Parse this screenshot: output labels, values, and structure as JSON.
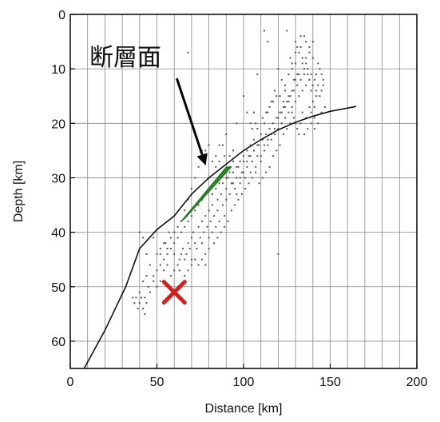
{
  "chart_data": {
    "type": "scatter",
    "xlabel": "Distance [km]",
    "ylabel": "Depth [km]",
    "xlim": [
      0,
      200
    ],
    "ylim": [
      0,
      65
    ],
    "y_inverted": true,
    "x_ticks": [
      0,
      50,
      100,
      150,
      200
    ],
    "y_ticks": [
      0,
      10,
      20,
      30,
      40,
      50,
      60
    ],
    "grid": true,
    "grid_x_step": 10,
    "grid_y_step": 10,
    "annotation": {
      "text": "断層面",
      "arrow_from": [
        67,
        10
      ],
      "arrow_to": [
        80,
        28
      ]
    },
    "plate_boundary": [
      [
        8,
        65
      ],
      [
        20,
        58
      ],
      [
        32,
        50
      ],
      [
        40,
        43
      ],
      [
        50,
        39.5
      ],
      [
        60,
        37
      ],
      [
        70,
        33
      ],
      [
        80,
        30
      ],
      [
        90,
        27.5
      ],
      [
        100,
        25
      ],
      [
        110,
        23
      ],
      [
        120,
        21.2
      ],
      [
        130,
        19.8
      ],
      [
        140,
        18.7
      ],
      [
        150,
        17.8
      ],
      [
        165,
        16.9
      ]
    ],
    "fault_plane": [
      [
        64,
        38
      ],
      [
        90,
        28
      ],
      [
        93,
        28
      ],
      [
        66,
        37.5
      ]
    ],
    "hypocenter": {
      "x": 60,
      "y": 51,
      "marker": "x",
      "color": "#cc2222"
    },
    "fault_color": "#2a8a2a",
    "seismicity": [
      [
        36,
        52
      ],
      [
        37,
        53
      ],
      [
        38,
        52
      ],
      [
        39,
        54
      ],
      [
        40,
        51
      ],
      [
        40,
        53
      ],
      [
        41,
        52
      ],
      [
        42,
        54
      ],
      [
        43,
        55
      ],
      [
        43,
        52
      ],
      [
        44,
        53
      ],
      [
        45,
        50
      ],
      [
        42,
        49
      ],
      [
        44,
        48
      ],
      [
        46,
        51
      ],
      [
        48,
        49
      ],
      [
        50,
        50
      ],
      [
        52,
        49
      ],
      [
        54,
        47
      ],
      [
        56,
        46
      ],
      [
        58,
        48
      ],
      [
        60,
        47
      ],
      [
        62,
        46
      ],
      [
        63,
        45
      ],
      [
        64,
        44
      ],
      [
        65,
        43
      ],
      [
        66,
        45
      ],
      [
        67,
        44
      ],
      [
        68,
        42
      ],
      [
        69,
        43
      ],
      [
        70,
        41
      ],
      [
        70,
        45
      ],
      [
        71,
        40
      ],
      [
        72,
        42
      ],
      [
        73,
        43
      ],
      [
        74,
        39
      ],
      [
        75,
        41
      ],
      [
        76,
        38
      ],
      [
        76,
        42
      ],
      [
        77,
        40
      ],
      [
        78,
        37
      ],
      [
        78,
        44
      ],
      [
        79,
        39
      ],
      [
        80,
        36
      ],
      [
        80,
        41
      ],
      [
        81,
        38
      ],
      [
        82,
        40
      ],
      [
        82,
        35
      ],
      [
        83,
        37
      ],
      [
        84,
        39
      ],
      [
        85,
        34
      ],
      [
        85,
        36
      ],
      [
        86,
        38
      ],
      [
        87,
        33
      ],
      [
        88,
        35
      ],
      [
        88,
        31
      ],
      [
        89,
        37
      ],
      [
        90,
        32
      ],
      [
        90,
        34
      ],
      [
        91,
        30
      ],
      [
        92,
        33
      ],
      [
        93,
        31
      ],
      [
        94,
        29
      ],
      [
        95,
        32
      ],
      [
        96,
        30
      ],
      [
        97,
        28
      ],
      [
        98,
        31
      ],
      [
        99,
        29
      ],
      [
        100,
        27
      ],
      [
        101,
        30
      ],
      [
        102,
        28
      ],
      [
        103,
        26
      ],
      [
        104,
        29
      ],
      [
        105,
        27
      ],
      [
        106,
        25
      ],
      [
        107,
        28
      ],
      [
        108,
        26
      ],
      [
        109,
        24
      ],
      [
        110,
        27
      ],
      [
        111,
        23
      ],
      [
        112,
        25
      ],
      [
        113,
        22
      ],
      [
        114,
        24
      ],
      [
        115,
        21
      ],
      [
        116,
        23
      ],
      [
        117,
        20
      ],
      [
        118,
        22
      ],
      [
        119,
        19
      ],
      [
        120,
        21
      ],
      [
        121,
        18
      ],
      [
        122,
        20
      ],
      [
        123,
        17
      ],
      [
        124,
        19
      ],
      [
        125,
        16
      ],
      [
        126,
        18
      ],
      [
        127,
        15
      ],
      [
        128,
        17
      ],
      [
        129,
        14
      ],
      [
        130,
        16
      ],
      [
        131,
        13
      ],
      [
        132,
        15
      ],
      [
        133,
        12
      ],
      [
        134,
        14
      ],
      [
        135,
        11
      ],
      [
        136,
        13
      ],
      [
        137,
        10
      ],
      [
        138,
        12
      ],
      [
        139,
        11
      ],
      [
        140,
        13
      ],
      [
        141,
        12
      ],
      [
        142,
        14
      ],
      [
        143,
        13
      ],
      [
        144,
        15
      ],
      [
        145,
        14
      ],
      [
        146,
        12
      ],
      [
        127,
        8
      ],
      [
        128,
        10
      ],
      [
        129,
        12
      ],
      [
        130,
        9
      ],
      [
        131,
        11
      ],
      [
        132,
        7
      ],
      [
        133,
        6
      ],
      [
        134,
        8
      ],
      [
        135,
        10
      ],
      [
        136,
        9
      ],
      [
        137,
        11
      ],
      [
        138,
        12
      ],
      [
        139,
        14
      ],
      [
        140,
        16
      ],
      [
        141,
        17
      ],
      [
        142,
        15
      ],
      [
        130,
        5
      ],
      [
        135,
        4
      ],
      [
        140,
        5
      ],
      [
        125,
        3
      ],
      [
        120,
        10
      ],
      [
        122,
        12
      ],
      [
        124,
        14
      ],
      [
        126,
        16
      ],
      [
        128,
        18
      ],
      [
        130,
        20
      ],
      [
        132,
        22
      ],
      [
        134,
        18
      ],
      [
        136,
        19
      ],
      [
        138,
        17
      ],
      [
        139,
        18
      ],
      [
        141,
        19
      ],
      [
        118,
        14
      ],
      [
        116,
        16
      ],
      [
        114,
        18
      ],
      [
        112,
        20
      ],
      [
        110,
        22
      ],
      [
        108,
        21
      ],
      [
        106,
        23
      ],
      [
        104,
        24
      ],
      [
        102,
        25
      ],
      [
        100,
        26
      ],
      [
        98,
        27
      ],
      [
        96,
        28
      ],
      [
        94,
        27
      ],
      [
        92,
        29
      ],
      [
        90,
        30
      ],
      [
        88,
        29
      ],
      [
        86,
        31
      ],
      [
        84,
        32
      ],
      [
        82,
        33
      ],
      [
        80,
        32
      ],
      [
        78,
        33
      ],
      [
        76,
        34
      ],
      [
        74,
        35
      ],
      [
        72,
        36
      ],
      [
        70,
        37
      ],
      [
        68,
        38
      ],
      [
        66,
        39
      ],
      [
        64,
        40
      ],
      [
        62,
        41
      ],
      [
        60,
        42
      ],
      [
        58,
        43
      ],
      [
        56,
        44
      ],
      [
        54,
        45
      ],
      [
        52,
        46
      ],
      [
        50,
        47
      ],
      [
        48,
        48
      ],
      [
        46,
        46
      ],
      [
        44,
        44
      ],
      [
        42,
        41
      ],
      [
        40,
        40
      ],
      [
        48,
        41
      ],
      [
        50,
        44
      ],
      [
        52,
        43
      ],
      [
        55,
        42
      ],
      [
        57,
        40
      ],
      [
        60,
        44
      ],
      [
        63,
        47
      ],
      [
        66,
        48
      ],
      [
        68,
        47
      ],
      [
        70,
        46
      ],
      [
        72,
        45
      ],
      [
        74,
        46
      ],
      [
        76,
        45
      ],
      [
        78,
        46
      ],
      [
        80,
        43
      ],
      [
        83,
        42
      ],
      [
        85,
        41
      ],
      [
        87,
        40
      ],
      [
        89,
        39
      ],
      [
        91,
        38
      ],
      [
        93,
        36
      ],
      [
        95,
        35
      ],
      [
        97,
        34
      ],
      [
        99,
        33
      ],
      [
        101,
        32
      ],
      [
        103,
        31
      ],
      [
        105,
        30
      ],
      [
        107,
        29
      ],
      [
        109,
        31
      ],
      [
        111,
        30
      ],
      [
        113,
        29
      ],
      [
        115,
        28
      ],
      [
        117,
        26
      ],
      [
        119,
        25
      ],
      [
        121,
        24
      ],
      [
        123,
        22
      ],
      [
        125,
        21
      ],
      [
        127,
        20
      ],
      [
        129,
        19
      ],
      [
        131,
        21
      ],
      [
        133,
        20
      ],
      [
        135,
        22
      ],
      [
        137,
        21
      ],
      [
        139,
        20
      ],
      [
        141,
        21
      ],
      [
        143,
        20
      ],
      [
        145,
        18
      ],
      [
        147,
        17
      ],
      [
        76,
        25
      ],
      [
        78,
        25
      ],
      [
        80,
        24
      ],
      [
        86,
        24
      ],
      [
        90,
        22
      ],
      [
        112,
        3
      ],
      [
        114,
        5
      ],
      [
        108,
        11
      ],
      [
        56,
        43
      ],
      [
        84,
        26
      ],
      [
        88,
        24
      ],
      [
        96,
        20
      ],
      [
        100,
        15
      ],
      [
        102,
        18
      ],
      [
        104,
        20
      ],
      [
        106,
        18
      ],
      [
        124,
        13
      ],
      [
        126,
        11
      ],
      [
        128,
        9
      ],
      [
        130,
        7
      ],
      [
        131,
        6
      ],
      [
        133,
        4
      ],
      [
        136,
        5
      ],
      [
        138,
        6
      ],
      [
        140,
        8
      ],
      [
        144,
        10
      ],
      [
        145,
        11
      ],
      [
        146,
        13
      ],
      [
        142,
        11
      ],
      [
        143,
        9
      ],
      [
        72,
        30
      ],
      [
        74,
        28
      ],
      [
        70,
        32
      ],
      [
        68,
        34
      ],
      [
        66,
        36
      ],
      [
        64,
        38
      ],
      [
        62,
        39
      ],
      [
        58,
        41
      ],
      [
        54,
        42
      ],
      [
        52,
        44
      ],
      [
        60,
        40
      ],
      [
        82,
        27
      ],
      [
        84,
        28
      ],
      [
        86,
        27
      ],
      [
        89,
        26
      ],
      [
        92,
        26
      ],
      [
        94,
        25
      ],
      [
        120,
        44
      ],
      [
        105,
        21
      ],
      [
        107,
        20
      ],
      [
        111,
        19
      ],
      [
        113,
        18
      ],
      [
        115,
        17
      ],
      [
        117,
        16
      ],
      [
        119,
        15
      ],
      [
        121,
        15
      ],
      [
        123,
        16
      ],
      [
        68,
        7
      ],
      [
        90,
        29
      ],
      [
        92,
        28
      ],
      [
        94,
        31
      ],
      [
        96,
        33
      ],
      [
        98,
        30
      ],
      [
        100,
        29
      ],
      [
        102,
        27
      ],
      [
        104,
        26
      ],
      [
        106,
        25
      ],
      [
        108,
        24
      ],
      [
        110,
        26
      ],
      [
        112,
        24
      ],
      [
        114,
        23
      ],
      [
        116,
        22
      ],
      [
        118,
        21
      ],
      [
        120,
        19
      ],
      [
        122,
        18
      ],
      [
        124,
        17
      ],
      [
        126,
        15
      ],
      [
        128,
        14
      ],
      [
        130,
        12
      ],
      [
        132,
        11
      ],
      [
        134,
        9
      ],
      [
        136,
        8
      ],
      [
        138,
        7
      ]
    ]
  }
}
